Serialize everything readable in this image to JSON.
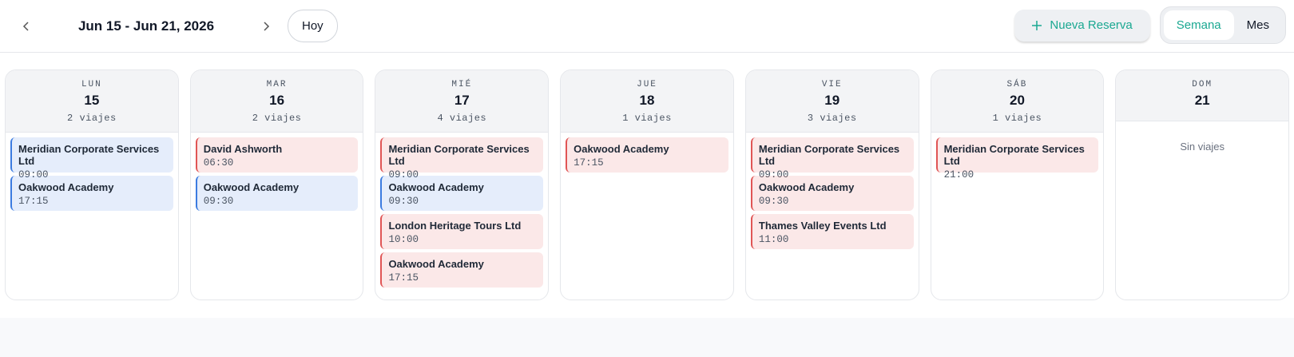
{
  "header": {
    "date_range": "Jun 15 - Jun 21, 2026",
    "today_button": "Hoy",
    "new_booking_button": "Nueva Reserva",
    "views": [
      "Semana",
      "Mes"
    ]
  },
  "empty_label": "Sin viajes",
  "days": [
    {
      "weekday": "LUN",
      "day": "15",
      "count": "2 viajes",
      "trips": [
        {
          "name": "Meridian Corporate Services Ltd",
          "time": "09:00",
          "color": "#3b7be0"
        },
        {
          "name": "Oakwood Academy",
          "time": "17:15",
          "color": "#3b7be0"
        }
      ]
    },
    {
      "weekday": "MAR",
      "day": "16",
      "count": "2 viajes",
      "trips": [
        {
          "name": "David Ashworth",
          "time": "06:30",
          "color": "#e05555"
        },
        {
          "name": "Oakwood Academy",
          "time": "09:30",
          "color": "#3b7be0"
        }
      ]
    },
    {
      "weekday": "MIÉ",
      "day": "17",
      "count": "4 viajes",
      "trips": [
        {
          "name": "Meridian Corporate Services Ltd",
          "time": "09:00",
          "color": "#e05555"
        },
        {
          "name": "Oakwood Academy",
          "time": "09:30",
          "color": "#3b7be0"
        },
        {
          "name": "London Heritage Tours Ltd",
          "time": "10:00",
          "color": "#e05555"
        },
        {
          "name": "Oakwood Academy",
          "time": "17:15",
          "color": "#e05555"
        }
      ]
    },
    {
      "weekday": "JUE",
      "day": "18",
      "count": "1 viajes",
      "trips": [
        {
          "name": "Oakwood Academy",
          "time": "17:15",
          "color": "#e05555"
        }
      ]
    },
    {
      "weekday": "VIE",
      "day": "19",
      "count": "3 viajes",
      "trips": [
        {
          "name": "Meridian Corporate Services Ltd",
          "time": "09:00",
          "color": "#e05555"
        },
        {
          "name": "Oakwood Academy",
          "time": "09:30",
          "color": "#e05555"
        },
        {
          "name": "Thames Valley Events Ltd",
          "time": "11:00",
          "color": "#e05555"
        }
      ]
    },
    {
      "weekday": "SÁB",
      "day": "20",
      "count": "1 viajes",
      "trips": [
        {
          "name": "Meridian Corporate Services Ltd",
          "time": "21:00",
          "color": "#e05555"
        }
      ]
    },
    {
      "weekday": "DOM",
      "day": "21",
      "trips": []
    }
  ]
}
